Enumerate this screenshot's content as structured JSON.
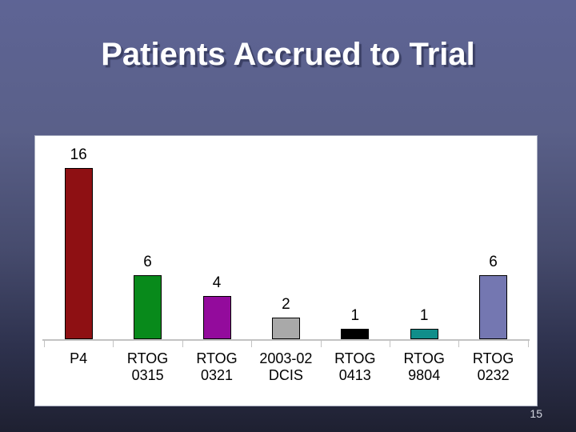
{
  "slide": {
    "title": "Patients Accrued to Trial",
    "page_number": "15",
    "title_color": "#ffffff",
    "title_shadow_color": "#3b4065",
    "background_top_color": "#5e6495",
    "background_bottom_color": "#1e2031",
    "panel_color": "#ffffff"
  },
  "chart_data": {
    "type": "bar",
    "title": "",
    "xlabel": "",
    "ylabel": "",
    "categories": [
      "P4",
      "RTOG 0315",
      "RTOG 0321",
      "2003-02 DCIS",
      "RTOG 0413",
      "RTOG 9804",
      "RTOG 0232"
    ],
    "category_lines": [
      [
        "P4"
      ],
      [
        "RTOG",
        "0315"
      ],
      [
        "RTOG",
        "0321"
      ],
      [
        "2003-02",
        "DCIS"
      ],
      [
        "RTOG",
        "0413"
      ],
      [
        "RTOG",
        "9804"
      ],
      [
        "RTOG",
        "0232"
      ]
    ],
    "values": [
      16,
      6,
      4,
      2,
      1,
      1,
      6
    ],
    "data_labels": [
      "16",
      "6",
      "4",
      "2",
      "1",
      "1",
      "6"
    ],
    "bar_colors": [
      "#8e1013",
      "#088a1b",
      "#930b9c",
      "#a9a9a9",
      "#000000",
      "#108e8a",
      "#7477b1"
    ],
    "bar_border_color": "#000000",
    "axis_color": "#c2c2c2",
    "ylim": [
      0,
      18
    ],
    "grid": false,
    "legend": false,
    "y_axis_shown": false,
    "data_labels_position": "above-bars"
  }
}
